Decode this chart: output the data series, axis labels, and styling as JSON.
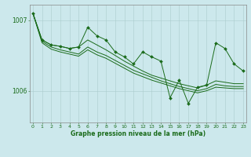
{
  "xlabel": "Graphe pression niveau de la mer (hPa)",
  "hours": [
    0,
    1,
    2,
    3,
    4,
    5,
    6,
    7,
    8,
    9,
    10,
    11,
    12,
    13,
    14,
    15,
    16,
    17,
    18,
    19,
    20,
    21,
    22,
    23
  ],
  "pressure_spiky": [
    1007.1,
    1006.72,
    1006.65,
    1006.63,
    1006.6,
    1006.62,
    1006.9,
    1006.78,
    1006.72,
    1006.55,
    1006.48,
    1006.38,
    1006.55,
    1006.48,
    1006.42,
    1005.9,
    1006.15,
    1005.82,
    1006.05,
    1006.08,
    1006.68,
    1006.6,
    1006.38,
    1006.28
  ],
  "pressure_line1": [
    1007.1,
    1006.72,
    1006.65,
    1006.63,
    1006.6,
    1006.62,
    1006.72,
    1006.65,
    1006.58,
    1006.5,
    1006.42,
    1006.35,
    1006.28,
    1006.22,
    1006.18,
    1006.14,
    1006.1,
    1006.07,
    1006.04,
    1006.08,
    1006.14,
    1006.12,
    1006.1,
    1006.1
  ],
  "pressure_line2": [
    1007.1,
    1006.7,
    1006.62,
    1006.58,
    1006.55,
    1006.52,
    1006.62,
    1006.55,
    1006.5,
    1006.43,
    1006.36,
    1006.29,
    1006.24,
    1006.19,
    1006.14,
    1006.1,
    1006.06,
    1006.03,
    1006.0,
    1006.03,
    1006.09,
    1006.07,
    1006.06,
    1006.06
  ],
  "pressure_line3": [
    1007.1,
    1006.68,
    1006.59,
    1006.55,
    1006.52,
    1006.49,
    1006.58,
    1006.51,
    1006.46,
    1006.39,
    1006.32,
    1006.25,
    1006.2,
    1006.15,
    1006.11,
    1006.07,
    1006.03,
    1006.0,
    1005.97,
    1006.0,
    1006.05,
    1006.04,
    1006.03,
    1006.03
  ],
  "bg_color": "#cce8ec",
  "grid_color": "#aacccc",
  "line_color": "#1a6b1a",
  "marker_color": "#1a6b1a",
  "axis_label_color": "#1a6b1a",
  "tick_color": "#1a6b1a",
  "ylim": [
    1005.55,
    1007.22
  ],
  "yticks": [
    1006.0,
    1007.0
  ],
  "ytick_labels": [
    "1006",
    "1007"
  ],
  "xlim": [
    -0.3,
    23.3
  ]
}
